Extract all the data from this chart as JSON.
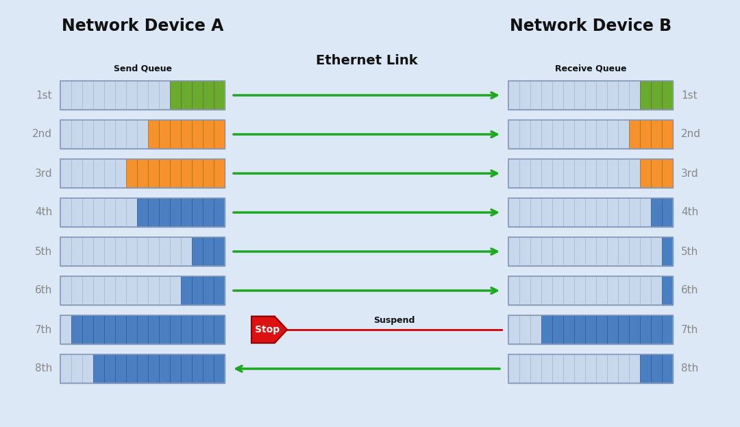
{
  "background_color": "#dce8f5",
  "title_A": "Network Device A",
  "title_B": "Network Device B",
  "label_send": "Send Queue",
  "label_receive": "Receive Queue",
  "label_ethernet": "Ethernet Link",
  "label_suspend": "Suspend",
  "label_stop": "Stop",
  "row_labels": [
    "1st",
    "2nd",
    "3rd",
    "4th",
    "5th",
    "6th",
    "7th",
    "8th"
  ],
  "color_gray_cell": "#c8d8ec",
  "color_gray_cell_border": "#a8b8cc",
  "color_green": "#6aab2e",
  "color_orange": "#f5922e",
  "color_blue": "#4a7fc1",
  "color_red": "#dd1111",
  "color_arrow_green": "#1da820",
  "color_arrow_red": "#cc0000",
  "color_title": "#111111",
  "color_row_label": "#888888",
  "send_queue_data": [
    {
      "gray": 10,
      "colored": 5,
      "color": "green"
    },
    {
      "gray": 8,
      "colored": 7,
      "color": "orange"
    },
    {
      "gray": 6,
      "colored": 9,
      "color": "orange"
    },
    {
      "gray": 7,
      "colored": 8,
      "color": "blue"
    },
    {
      "gray": 12,
      "colored": 3,
      "color": "blue"
    },
    {
      "gray": 11,
      "colored": 4,
      "color": "blue"
    },
    {
      "gray": 1,
      "colored": 14,
      "color": "blue"
    },
    {
      "gray": 3,
      "colored": 12,
      "color": "blue"
    }
  ],
  "receive_queue_data": [
    {
      "gray": 12,
      "colored": 3,
      "color": "green"
    },
    {
      "gray": 11,
      "colored": 4,
      "color": "orange"
    },
    {
      "gray": 12,
      "colored": 3,
      "color": "orange"
    },
    {
      "gray": 13,
      "colored": 2,
      "color": "blue"
    },
    {
      "gray": 14,
      "colored": 1,
      "color": "blue"
    },
    {
      "gray": 14,
      "colored": 1,
      "color": "blue"
    },
    {
      "gray": 3,
      "colored": 12,
      "color": "blue"
    },
    {
      "gray": 12,
      "colored": 3,
      "color": "blue"
    }
  ],
  "lq_total_cells": 15,
  "rq_total_cells": 15,
  "fig_w": 10.8,
  "fig_h": 6.23,
  "dpi": 100
}
